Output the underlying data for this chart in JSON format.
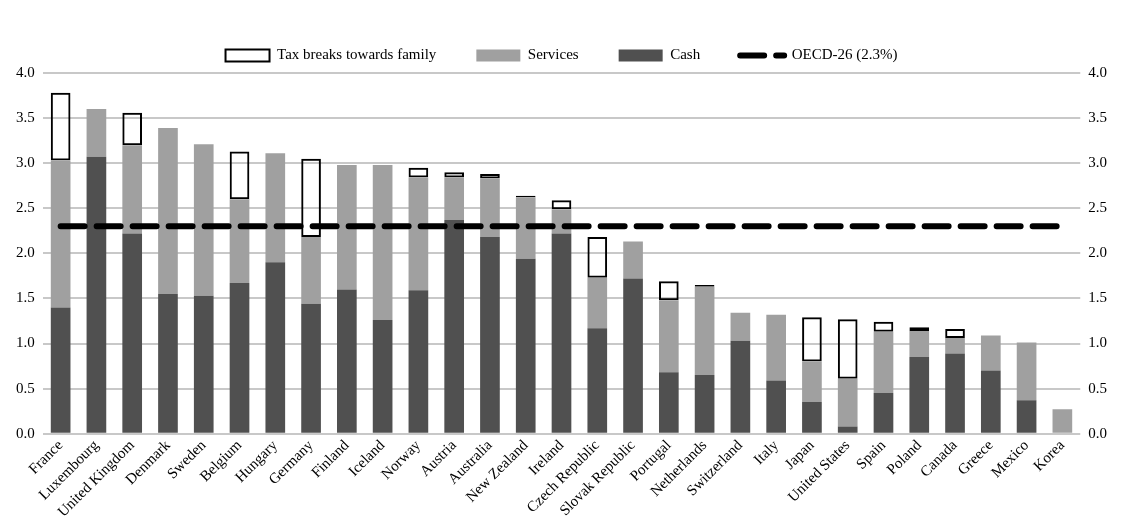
{
  "chart_data": {
    "type": "bar",
    "stacked": true,
    "categories": [
      "France",
      "Luxembourg",
      "United Kingdom",
      "Denmark",
      "Sweden",
      "Belgium",
      "Hungary",
      "Germany",
      "Finland",
      "Iceland",
      "Norway",
      "Austria",
      "Australia",
      "New Zealand",
      "Ireland",
      "Czech Republic",
      "Slovak Republic",
      "Portugal",
      "Netherlands",
      "Switzerland",
      "Italy",
      "Japan",
      "United States",
      "Spain",
      "Poland",
      "Canada",
      "Greece",
      "Mexico",
      "Korea"
    ],
    "series": [
      {
        "name": "Cash",
        "color": "#505050",
        "values": [
          1.4,
          3.07,
          2.22,
          1.55,
          1.53,
          1.67,
          1.9,
          1.44,
          1.6,
          1.26,
          1.59,
          2.37,
          2.18,
          1.94,
          2.22,
          1.17,
          1.72,
          0.68,
          0.65,
          1.03,
          0.59,
          0.35,
          0.08,
          0.45,
          0.85,
          0.89,
          0.7,
          0.37,
          0
        ]
      },
      {
        "name": "Services",
        "color": "#a0a0a0",
        "values": [
          1.63,
          0.53,
          0.98,
          1.84,
          1.68,
          0.93,
          1.21,
          0.74,
          1.38,
          1.72,
          1.25,
          0.47,
          0.65,
          0.68,
          0.27,
          0.56,
          0.41,
          0.8,
          0.98,
          0.31,
          0.73,
          0.45,
          0.53,
          0.68,
          0.29,
          0.17,
          0.39,
          0.64,
          0.27
        ]
      },
      {
        "name": "Tax breaks towards family",
        "color": "#000000",
        "values": [
          0.75,
          0,
          0.36,
          0,
          0,
          0.53,
          0,
          0.87,
          0,
          0,
          0.11,
          0.06,
          0.05,
          0.02,
          0.1,
          0.45,
          0,
          0.21,
          0.02,
          0,
          0,
          0.49,
          0.66,
          0.11,
          0.04,
          0.1,
          0,
          0,
          0
        ]
      },
      {
        "name": "OECD-26 (2.3%)",
        "type": "line",
        "color": "#000000",
        "line_style": "dashed",
        "marker": "none",
        "values": [
          2.3,
          2.3,
          2.3,
          2.3,
          2.3,
          2.3,
          2.3,
          2.3,
          2.3,
          2.3,
          2.3,
          2.3,
          2.3,
          2.3,
          2.3,
          2.3,
          2.3,
          2.3,
          2.3,
          2.3,
          2.3,
          2.3,
          2.3,
          2.3,
          2.3,
          2.3,
          2.3,
          2.3,
          2.3
        ]
      }
    ],
    "ylim": [
      0,
      4
    ],
    "yticks": [
      {
        "value": 0,
        "label": "0.0"
      },
      {
        "value": 0.5,
        "label": "0.5"
      },
      {
        "value": 1,
        "label": "1.0"
      },
      {
        "value": 1.5,
        "label": "1.5"
      },
      {
        "value": 2,
        "label": "2.0"
      },
      {
        "value": 2.5,
        "label": "2.5"
      },
      {
        "value": 3,
        "label": "3.0"
      },
      {
        "value": 3.5,
        "label": "3.5"
      },
      {
        "value": 4,
        "label": "4.0"
      }
    ],
    "y2lim": [
      0,
      4
    ],
    "y2ticks": [
      {
        "value": 0,
        "label": "0.0"
      },
      {
        "value": 0.5,
        "label": "0.5"
      },
      {
        "value": 1,
        "label": "1.0"
      },
      {
        "value": 1.5,
        "label": "1.5"
      },
      {
        "value": 2,
        "label": "2.0"
      },
      {
        "value": 2.5,
        "label": "2.5"
      },
      {
        "value": 3,
        "label": "3.0"
      },
      {
        "value": 3.5,
        "label": "3.5"
      },
      {
        "value": 4,
        "label": "4.0"
      }
    ],
    "grid": "y",
    "legend": "top"
  }
}
